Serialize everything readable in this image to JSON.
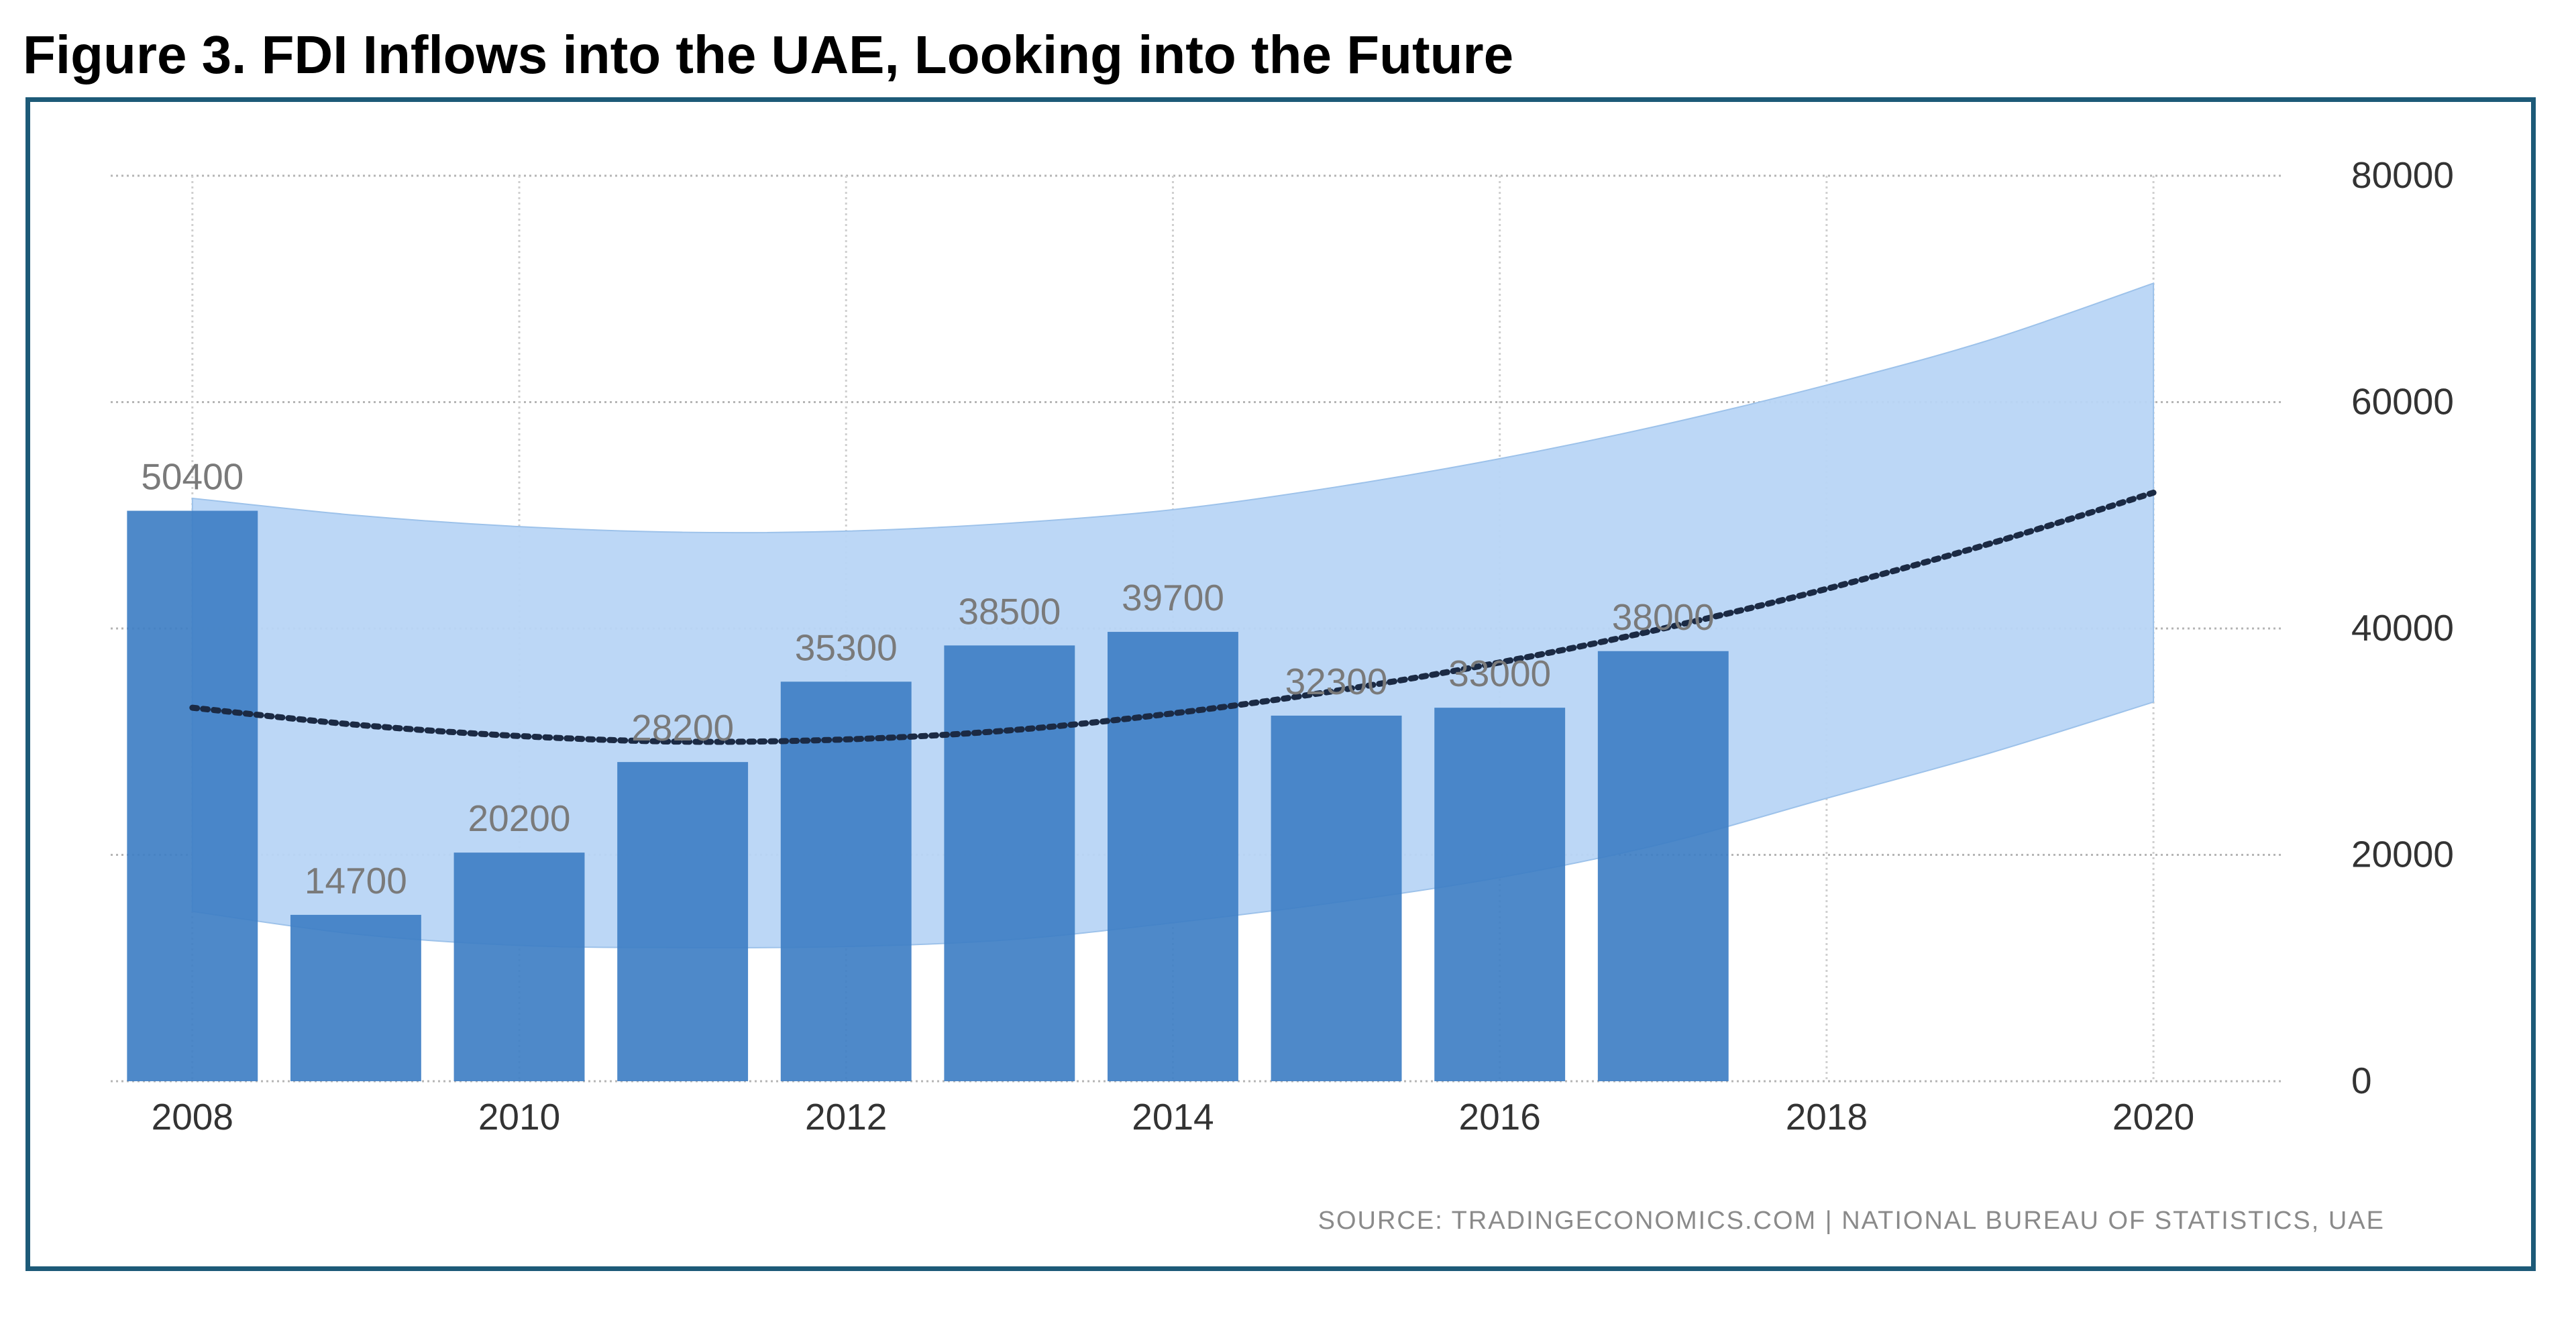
{
  "title": "Figure 3. FDI Inflows into the UAE, Looking into the Future",
  "source": "SOURCE: TRADINGECONOMICS.COM | NATIONAL BUREAU OF STATISTICS, UAE",
  "colors": {
    "bar": "#3f7fc4",
    "band": "#b8d5f5",
    "trend": "#1b2a44",
    "frame": "#1d5a78"
  },
  "chart_data": {
    "type": "bar",
    "x": [
      2008,
      2009,
      2010,
      2011,
      2012,
      2013,
      2014,
      2015,
      2016,
      2017
    ],
    "values": [
      50400,
      14700,
      20200,
      28200,
      35300,
      38500,
      39700,
      32300,
      33000,
      38000
    ],
    "data_labels": [
      "50400",
      "14700",
      "20200",
      "28200",
      "35300",
      "38500",
      "39700",
      "32300",
      "33000",
      "38000"
    ],
    "xlim": [
      2007.5,
      2020.8
    ],
    "ylim": [
      0,
      80000
    ],
    "x_ticks": [
      2008,
      2010,
      2012,
      2014,
      2016,
      2018,
      2020
    ],
    "y_ticks": [
      0,
      20000,
      40000,
      60000,
      80000
    ],
    "y_axis_side": "right",
    "grid": true,
    "forecast": {
      "x": [
        2008,
        2009,
        2010,
        2011,
        2012,
        2013,
        2014,
        2015,
        2016,
        2017,
        2018,
        2019,
        2020
      ],
      "trend": [
        33000,
        31500,
        30500,
        30000,
        30200,
        31000,
        32500,
        34500,
        37000,
        40000,
        43500,
        47500,
        52000
      ],
      "upper": [
        51500,
        50000,
        49000,
        48500,
        48600,
        49300,
        50500,
        52500,
        55000,
        58000,
        61500,
        65500,
        70500
      ],
      "lower": [
        15000,
        13000,
        12000,
        11800,
        11900,
        12500,
        14000,
        15800,
        18000,
        21000,
        25000,
        29000,
        33500
      ]
    }
  }
}
